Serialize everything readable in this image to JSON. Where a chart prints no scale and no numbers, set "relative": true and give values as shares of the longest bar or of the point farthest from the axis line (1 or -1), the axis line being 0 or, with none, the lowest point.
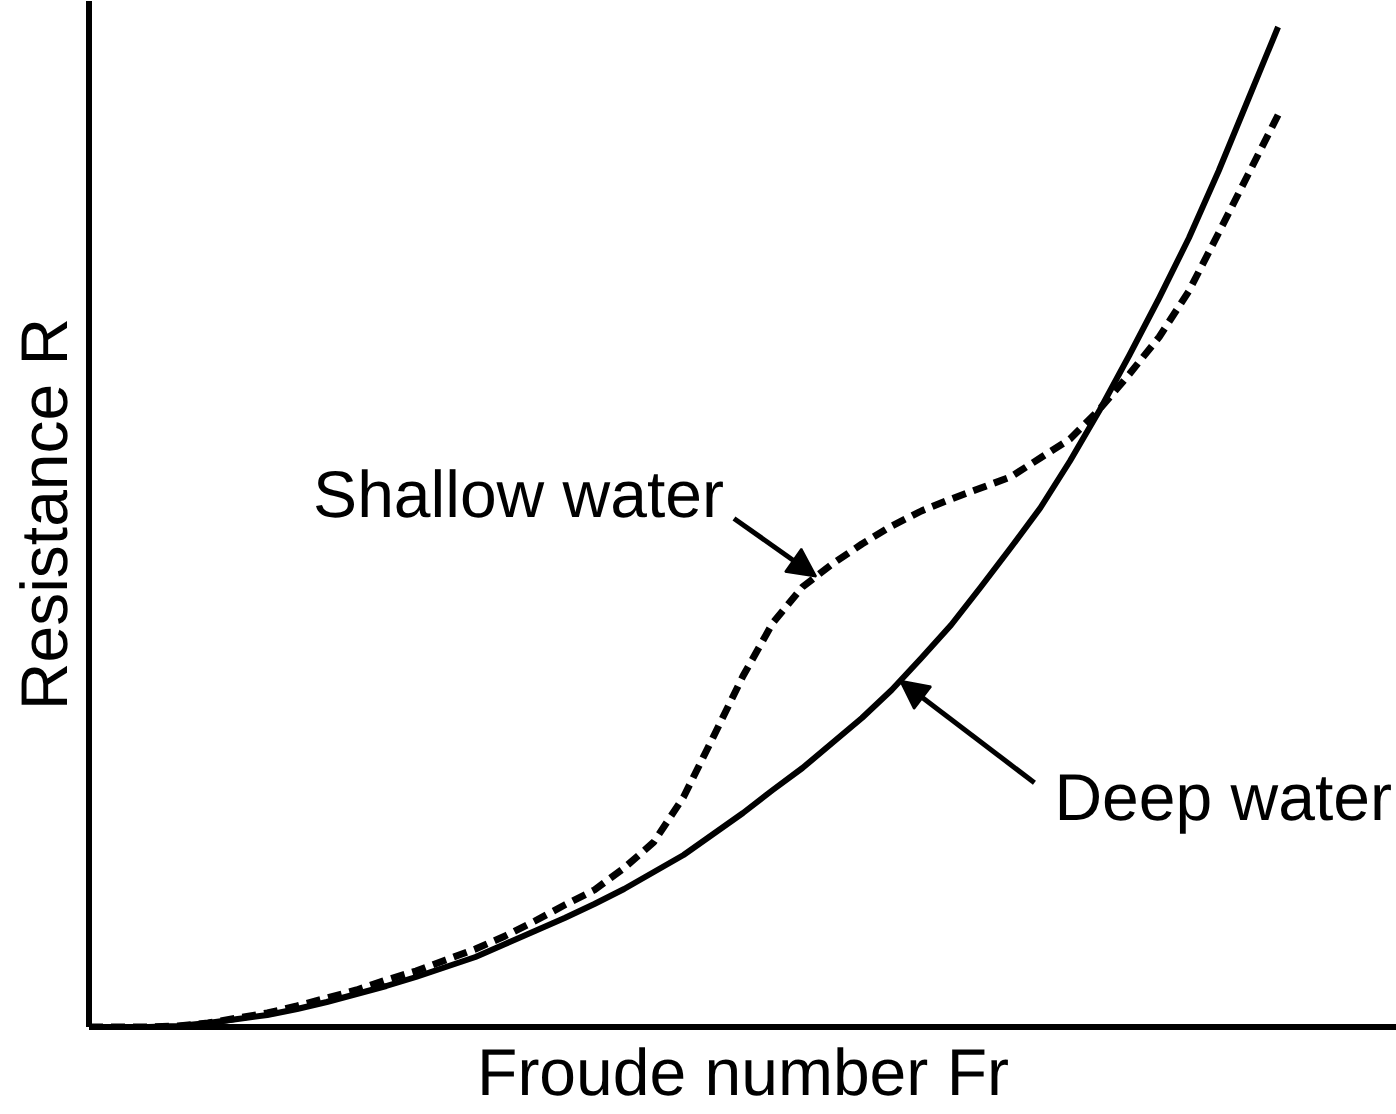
{
  "chart_data": {
    "type": "line",
    "relative": true,
    "xlabel": "Froude number Fr",
    "ylabel": "Resistance R",
    "categories": [
      null,
      null,
      null,
      null,
      null,
      null,
      null,
      null,
      null,
      null,
      null,
      null,
      null,
      null,
      null,
      null,
      null,
      null,
      null,
      null,
      null,
      null,
      null,
      null,
      null,
      null,
      null,
      null,
      null,
      null,
      null,
      null,
      null,
      null,
      null,
      null,
      null,
      null,
      null,
      null,
      null
    ],
    "series": [
      {
        "name": "Deep water",
        "color": "#000000",
        "line_style": "solid",
        "values": [
          0,
          0,
          0,
          0.001,
          0.004,
          0.008,
          0.012,
          0.018,
          0.025,
          0.033,
          0.041,
          0.05,
          0.06,
          0.07,
          0.083,
          0.096,
          0.109,
          0.123,
          0.138,
          0.155,
          0.172,
          0.193,
          0.214,
          0.237,
          0.259,
          0.284,
          0.309,
          0.337,
          0.369,
          0.402,
          0.44,
          0.479,
          0.519,
          0.566,
          0.617,
          0.672,
          0.729,
          0.789,
          0.856,
          0.928,
          1.0
        ]
      },
      {
        "name": "Shallow water",
        "color": "#000000",
        "line_style": "dashed",
        "values": [
          0,
          0,
          0,
          0.001,
          0.004,
          0.009,
          0.014,
          0.021,
          0.029,
          0.037,
          0.047,
          0.056,
          0.067,
          0.078,
          0.091,
          0.106,
          0.122,
          0.137,
          0.159,
          0.185,
          0.23,
          0.29,
          0.351,
          0.404,
          0.44,
          0.463,
          0.483,
          0.501,
          0.516,
          0.528,
          0.539,
          0.55,
          0.569,
          0.588,
          0.618,
          0.653,
          0.69,
          0.736,
          0.794,
          0.853,
          0.912
        ]
      }
    ]
  }
}
